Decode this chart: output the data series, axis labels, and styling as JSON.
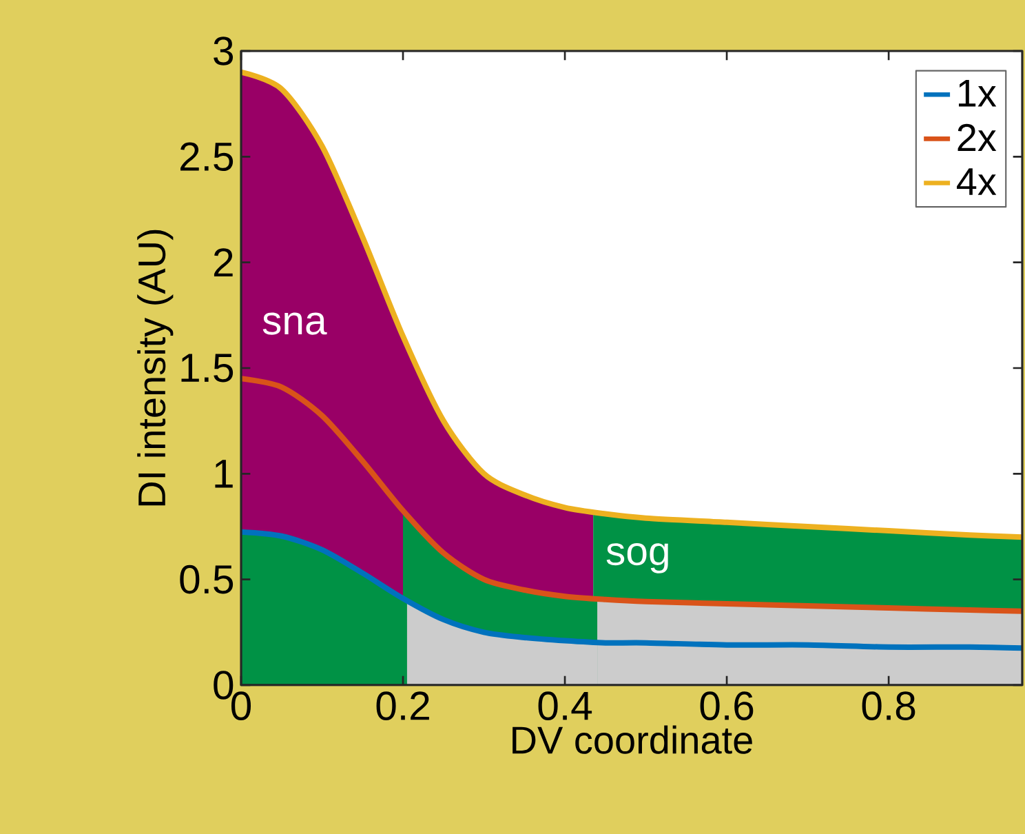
{
  "chart_data": {
    "type": "line",
    "xlabel": "DV coordinate",
    "ylabel": "DI intensity (AU)",
    "xlim": [
      0,
      0.965
    ],
    "ylim": [
      0,
      3
    ],
    "xticks": [
      0,
      0.2,
      0.4,
      0.6,
      0.8
    ],
    "yticks": [
      0,
      0.5,
      1,
      1.5,
      2,
      2.5,
      3
    ],
    "legend": "top right",
    "annotations": [
      "sna",
      "sog"
    ],
    "series": [
      {
        "type": "area",
        "color": "#990066",
        "x": [
          0,
          0.05,
          0.1,
          0.15,
          0.2,
          0.25,
          0.3,
          0.35,
          0.4,
          0.435
        ],
        "values": [
          2.9,
          2.82,
          2.55,
          2.12,
          1.65,
          1.25,
          1.0,
          0.9,
          0.84,
          0.82
        ]
      },
      {
        "type": "area",
        "color": "#009245",
        "x": [
          0.435,
          0.45,
          0.5,
          0.6,
          0.7,
          0.8,
          0.9,
          0.965
        ],
        "values": [
          0.82,
          0.81,
          0.79,
          0.77,
          0.75,
          0.73,
          0.71,
          0.7
        ]
      },
      {
        "type": "area",
        "color": "#009245",
        "x": [
          0.2,
          0.25,
          0.3,
          0.35,
          0.4,
          0.44
        ],
        "values": [
          0.825,
          0.625,
          0.5,
          0.45,
          0.42,
          0.41
        ]
      },
      {
        "type": "area",
        "color": "#cccccc",
        "x": [
          0.44,
          0.45,
          0.5,
          0.6,
          0.7,
          0.8,
          0.9,
          0.965
        ],
        "values": [
          0.41,
          0.405,
          0.395,
          0.385,
          0.375,
          0.365,
          0.355,
          0.35
        ]
      },
      {
        "type": "area",
        "color": "#009245",
        "x": [
          0,
          0.05,
          0.1,
          0.15,
          0.2,
          0.205
        ],
        "values": [
          0.725,
          0.705,
          0.64,
          0.53,
          0.41,
          0.4
        ]
      },
      {
        "type": "area",
        "color": "#cccccc",
        "x": [
          0.205,
          0.25,
          0.3,
          0.35,
          0.4,
          0.44
        ],
        "values": [
          0.4,
          0.31,
          0.25,
          0.225,
          0.21,
          0.2
        ]
      },
      {
        "name": "1x",
        "color": "#0072bd",
        "x": [
          0,
          0.05,
          0.1,
          0.15,
          0.2,
          0.25,
          0.3,
          0.35,
          0.4,
          0.45,
          0.5,
          0.6,
          0.7,
          0.8,
          0.9,
          0.965
        ],
        "values": [
          0.725,
          0.705,
          0.64,
          0.53,
          0.41,
          0.31,
          0.25,
          0.225,
          0.21,
          0.2,
          0.2,
          0.19,
          0.19,
          0.18,
          0.18,
          0.175
        ]
      },
      {
        "name": "2x",
        "color": "#d95319",
        "x": [
          0,
          0.05,
          0.1,
          0.15,
          0.2,
          0.25,
          0.3,
          0.35,
          0.4,
          0.45,
          0.5,
          0.6,
          0.7,
          0.8,
          0.9,
          0.965
        ],
        "values": [
          1.45,
          1.41,
          1.275,
          1.06,
          0.825,
          0.625,
          0.5,
          0.45,
          0.42,
          0.405,
          0.395,
          0.385,
          0.375,
          0.365,
          0.355,
          0.35
        ]
      },
      {
        "name": "4x",
        "color": "#edb120",
        "x": [
          0,
          0.05,
          0.1,
          0.15,
          0.2,
          0.25,
          0.3,
          0.35,
          0.4,
          0.45,
          0.5,
          0.6,
          0.7,
          0.8,
          0.9,
          0.965
        ],
        "values": [
          2.9,
          2.82,
          2.55,
          2.12,
          1.65,
          1.25,
          1.0,
          0.9,
          0.84,
          0.81,
          0.79,
          0.77,
          0.75,
          0.73,
          0.71,
          0.7
        ]
      }
    ]
  }
}
